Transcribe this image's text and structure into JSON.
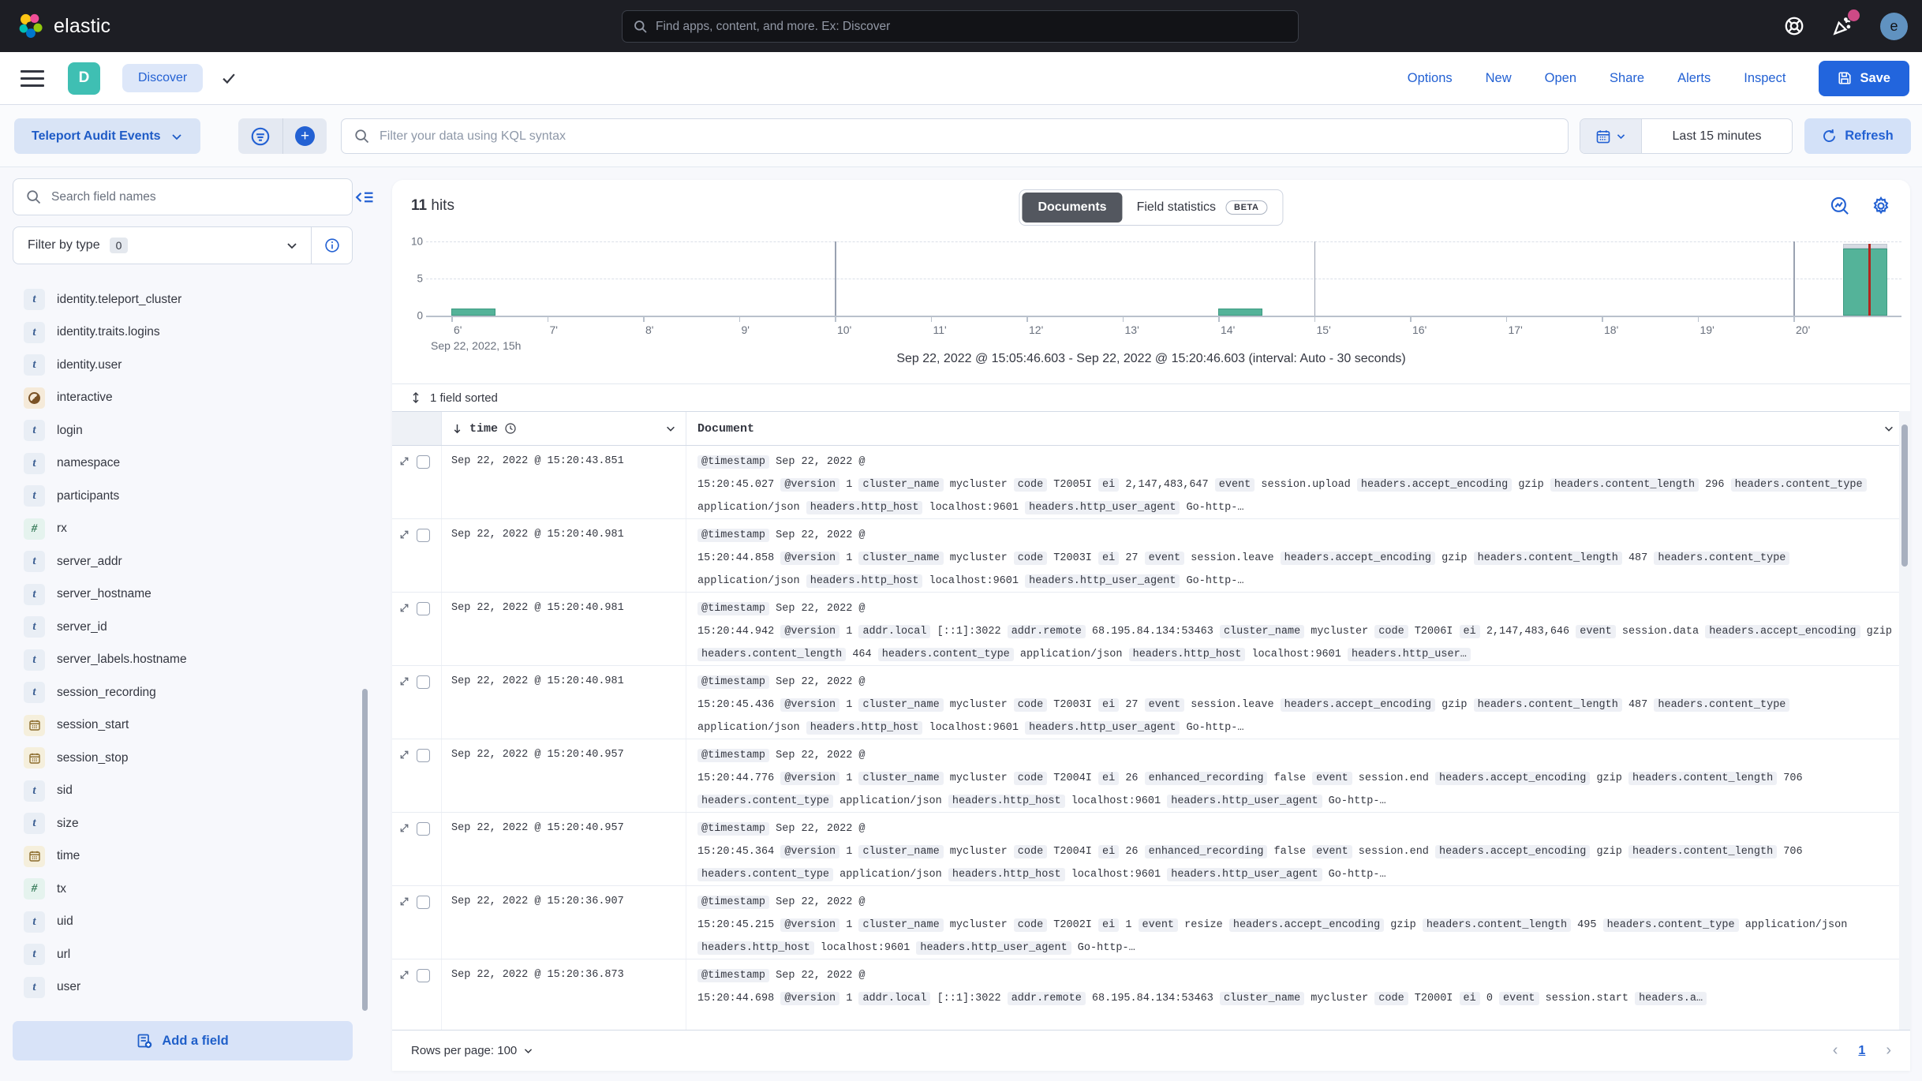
{
  "topbar": {
    "brand": "elastic",
    "search_placeholder": "Find apps, content, and more. Ex: Discover",
    "avatar_initial": "e"
  },
  "nav": {
    "app_initial": "D",
    "breadcrumb": "Discover",
    "links": [
      "Options",
      "New",
      "Open",
      "Share",
      "Alerts",
      "Inspect"
    ],
    "save_label": "Save"
  },
  "query": {
    "data_view": "Teleport Audit Events",
    "kql_placeholder": "Filter your data using KQL syntax",
    "time_range": "Last 15 minutes",
    "refresh_label": "Refresh"
  },
  "sidebar": {
    "search_placeholder": "Search field names",
    "filter_label": "Filter by type",
    "filter_count": "0",
    "add_field_label": "Add a field",
    "fields": [
      {
        "name": "identity.teleport_cluster",
        "type": "text"
      },
      {
        "name": "identity.traits.logins",
        "type": "text"
      },
      {
        "name": "identity.user",
        "type": "text"
      },
      {
        "name": "interactive",
        "type": "boolean"
      },
      {
        "name": "login",
        "type": "text"
      },
      {
        "name": "namespace",
        "type": "text"
      },
      {
        "name": "participants",
        "type": "text"
      },
      {
        "name": "rx",
        "type": "number"
      },
      {
        "name": "server_addr",
        "type": "text"
      },
      {
        "name": "server_hostname",
        "type": "text"
      },
      {
        "name": "server_id",
        "type": "text"
      },
      {
        "name": "server_labels.hostname",
        "type": "text"
      },
      {
        "name": "session_recording",
        "type": "text"
      },
      {
        "name": "session_start",
        "type": "date"
      },
      {
        "name": "session_stop",
        "type": "date"
      },
      {
        "name": "sid",
        "type": "text"
      },
      {
        "name": "size",
        "type": "text"
      },
      {
        "name": "time",
        "type": "date"
      },
      {
        "name": "tx",
        "type": "number"
      },
      {
        "name": "uid",
        "type": "text"
      },
      {
        "name": "url",
        "type": "text"
      },
      {
        "name": "user",
        "type": "text"
      }
    ]
  },
  "main": {
    "hits_value": "11",
    "hits_label": "hits",
    "tabs": [
      {
        "label": "Documents",
        "active": true
      },
      {
        "label": "Field statistics",
        "badge": "BETA"
      }
    ],
    "time_range_caption": "Sep 22, 2022 @ 15:05:46.603 - Sep 22, 2022 @ 15:20:46.603 (interval: Auto - 30 seconds)",
    "sorted_label": "1 field sorted",
    "columns": {
      "time": "time",
      "document": "Document"
    },
    "rows": [
      {
        "time": "Sep 22, 2022 @ 15:20:43.851",
        "doc_timestamp_prefix": "Sep 22, 2022 @",
        "doc_timestamp": "15:20:45.027",
        "pairs": [
          [
            "@version",
            "1"
          ],
          [
            "cluster_name",
            "mycluster"
          ],
          [
            "code",
            "T2005I"
          ],
          [
            "ei",
            "2,147,483,647"
          ],
          [
            "event",
            "session.upload"
          ],
          [
            "headers.accept_encoding",
            "gzip"
          ],
          [
            "headers.content_length",
            "296"
          ],
          [
            "headers.content_type",
            "application/json"
          ],
          [
            "headers.http_host",
            "localhost:9601"
          ],
          [
            "headers.http_user_agent",
            "Go-http-…"
          ]
        ]
      },
      {
        "time": "Sep 22, 2022 @ 15:20:40.981",
        "doc_timestamp_prefix": "Sep 22, 2022 @",
        "doc_timestamp": "15:20:44.858",
        "pairs": [
          [
            "@version",
            "1"
          ],
          [
            "cluster_name",
            "mycluster"
          ],
          [
            "code",
            "T2003I"
          ],
          [
            "ei",
            "27"
          ],
          [
            "event",
            "session.leave"
          ],
          [
            "headers.accept_encoding",
            "gzip"
          ],
          [
            "headers.content_length",
            "487"
          ],
          [
            "headers.content_type",
            "application/json"
          ],
          [
            "headers.http_host",
            "localhost:9601"
          ],
          [
            "headers.http_user_agent",
            "Go-http-…"
          ]
        ]
      },
      {
        "time": "Sep 22, 2022 @ 15:20:40.981",
        "doc_timestamp_prefix": "Sep 22, 2022 @",
        "doc_timestamp": "15:20:44.942",
        "pairs": [
          [
            "@version",
            "1"
          ],
          [
            "addr.local",
            "[::1]:3022"
          ],
          [
            "addr.remote",
            "68.195.84.134:53463"
          ],
          [
            "cluster_name",
            "mycluster"
          ],
          [
            "code",
            "T2006I"
          ],
          [
            "ei",
            "2,147,483,646"
          ],
          [
            "event",
            "session.data"
          ],
          [
            "headers.accept_encoding",
            "gzip"
          ],
          [
            "headers.content_length",
            "464"
          ],
          [
            "headers.content_type",
            "application/json"
          ],
          [
            "headers.http_host",
            "localhost:9601"
          ],
          [
            "headers.http_user…",
            ""
          ]
        ]
      },
      {
        "time": "Sep 22, 2022 @ 15:20:40.981",
        "doc_timestamp_prefix": "Sep 22, 2022 @",
        "doc_timestamp": "15:20:45.436",
        "pairs": [
          [
            "@version",
            "1"
          ],
          [
            "cluster_name",
            "mycluster"
          ],
          [
            "code",
            "T2003I"
          ],
          [
            "ei",
            "27"
          ],
          [
            "event",
            "session.leave"
          ],
          [
            "headers.accept_encoding",
            "gzip"
          ],
          [
            "headers.content_length",
            "487"
          ],
          [
            "headers.content_type",
            "application/json"
          ],
          [
            "headers.http_host",
            "localhost:9601"
          ],
          [
            "headers.http_user_agent",
            "Go-http-…"
          ]
        ]
      },
      {
        "time": "Sep 22, 2022 @ 15:20:40.957",
        "doc_timestamp_prefix": "Sep 22, 2022 @",
        "doc_timestamp": "15:20:44.776",
        "pairs": [
          [
            "@version",
            "1"
          ],
          [
            "cluster_name",
            "mycluster"
          ],
          [
            "code",
            "T2004I"
          ],
          [
            "ei",
            "26"
          ],
          [
            "enhanced_recording",
            "false"
          ],
          [
            "event",
            "session.end"
          ],
          [
            "headers.accept_encoding",
            "gzip"
          ],
          [
            "headers.content_length",
            "706"
          ],
          [
            "headers.content_type",
            "application/json"
          ],
          [
            "headers.http_host",
            "localhost:9601"
          ],
          [
            "headers.http_user_agent",
            "Go-http-…"
          ]
        ]
      },
      {
        "time": "Sep 22, 2022 @ 15:20:40.957",
        "doc_timestamp_prefix": "Sep 22, 2022 @",
        "doc_timestamp": "15:20:45.364",
        "pairs": [
          [
            "@version",
            "1"
          ],
          [
            "cluster_name",
            "mycluster"
          ],
          [
            "code",
            "T2004I"
          ],
          [
            "ei",
            "26"
          ],
          [
            "enhanced_recording",
            "false"
          ],
          [
            "event",
            "session.end"
          ],
          [
            "headers.accept_encoding",
            "gzip"
          ],
          [
            "headers.content_length",
            "706"
          ],
          [
            "headers.content_type",
            "application/json"
          ],
          [
            "headers.http_host",
            "localhost:9601"
          ],
          [
            "headers.http_user_agent",
            "Go-http-…"
          ]
        ]
      },
      {
        "time": "Sep 22, 2022 @ 15:20:36.907",
        "doc_timestamp_prefix": "Sep 22, 2022 @",
        "doc_timestamp": "15:20:45.215",
        "pairs": [
          [
            "@version",
            "1"
          ],
          [
            "cluster_name",
            "mycluster"
          ],
          [
            "code",
            "T2002I"
          ],
          [
            "ei",
            "1"
          ],
          [
            "event",
            "resize"
          ],
          [
            "headers.accept_encoding",
            "gzip"
          ],
          [
            "headers.content_length",
            "495"
          ],
          [
            "headers.content_type",
            "application/json"
          ],
          [
            "headers.http_host",
            "localhost:9601"
          ],
          [
            "headers.http_user_agent",
            "Go-http-…"
          ]
        ]
      },
      {
        "time": "Sep 22, 2022 @ 15:20:36.873",
        "doc_timestamp_prefix": "Sep 22, 2022 @",
        "doc_timestamp": "15:20:44.698",
        "pairs": [
          [
            "@version",
            "1"
          ],
          [
            "addr.local",
            "[::1]:3022"
          ],
          [
            "addr.remote",
            "68.195.84.134:53463"
          ],
          [
            "cluster_name",
            "mycluster"
          ],
          [
            "code",
            "T2000I"
          ],
          [
            "ei",
            "0"
          ],
          [
            "event",
            "session.start"
          ],
          [
            "headers.a…",
            ""
          ]
        ]
      }
    ],
    "footer": {
      "rows_per_page_label": "Rows per page: 100",
      "page": "1"
    }
  },
  "chart_data": {
    "type": "bar",
    "title": "",
    "xlabel": "Sep 22, 2022, 15h",
    "ylabel": "",
    "x_ticks": [
      "6'",
      "7'",
      "8'",
      "9'",
      "10'",
      "11'",
      "12'",
      "13'",
      "14'",
      "15'",
      "16'",
      "17'",
      "18'",
      "19'",
      "20'"
    ],
    "y_ticks": [
      0,
      5,
      10
    ],
    "ylim": [
      0,
      10
    ],
    "time_range": "Sep 22, 2022 @ 15:05:46.603 - Sep 22, 2022 @ 15:20:46.603",
    "interval": "Auto - 30 seconds",
    "bars": [
      {
        "time": "15:06:00",
        "minute": 6.0,
        "value": 1
      },
      {
        "time": "15:14:00",
        "minute": 14.0,
        "value": 1
      },
      {
        "time": "15:20:30",
        "minute": 20.52,
        "value": 9,
        "partial_cap": 0.7
      }
    ],
    "bar_width_minutes": 0.46,
    "major_gridlines_minutes": [
      10,
      15,
      20
    ],
    "current_time_marker_minute": 20.78,
    "bar_color": "#54b399",
    "marker_color": "#b2261e"
  }
}
